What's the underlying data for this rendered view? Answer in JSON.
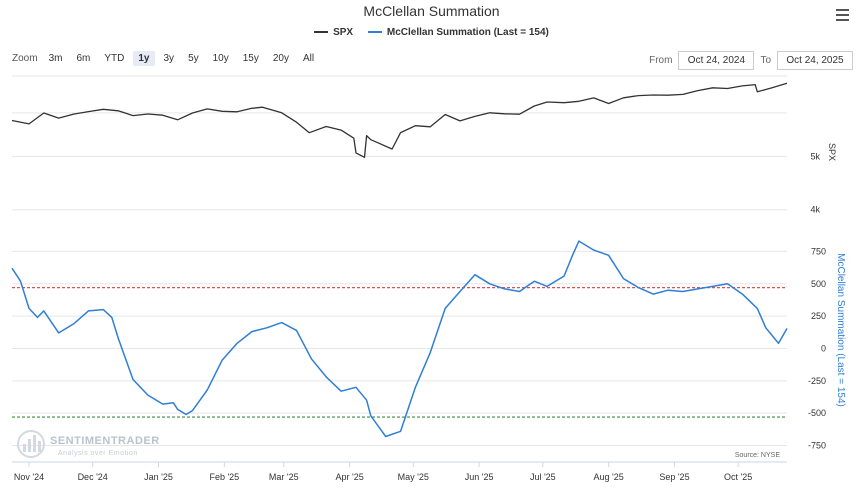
{
  "title": "McClellan Summation",
  "legend": [
    {
      "label": "SPX",
      "color": "#333333"
    },
    {
      "label": "McClellan Summation (Last = 154)",
      "color": "#2f7ed8"
    }
  ],
  "zoom": {
    "label": "Zoom",
    "buttons": [
      "3m",
      "6m",
      "YTD",
      "1y",
      "3y",
      "5y",
      "10y",
      "15y",
      "20y",
      "All"
    ],
    "active": "1y"
  },
  "range": {
    "from_label": "From",
    "from_value": "Oct 24, 2024",
    "to_label": "To",
    "to_value": "Oct 24, 2025"
  },
  "watermark": {
    "name": "SENTIMENTRADER",
    "tagline": "Analysis over Emotion"
  },
  "source": "Source: NYSE",
  "chart_data": [
    {
      "type": "line",
      "name": "SPX",
      "ylabel": "SPX",
      "yscale": "log",
      "ylim": [
        3800,
        7000
      ],
      "yticks": [
        {
          "value": 5000,
          "label": "5k"
        },
        {
          "value": 4000,
          "label": "4k"
        }
      ],
      "color": "#333333",
      "x": [
        "2024-10-24",
        "2024-11-01",
        "2024-11-08",
        "2024-11-15",
        "2024-11-22",
        "2024-11-29",
        "2024-12-06",
        "2024-12-13",
        "2024-12-20",
        "2024-12-27",
        "2025-01-03",
        "2025-01-10",
        "2025-01-17",
        "2025-01-24",
        "2025-01-31",
        "2025-02-07",
        "2025-02-14",
        "2025-02-19",
        "2025-02-28",
        "2025-03-07",
        "2025-03-13",
        "2025-03-21",
        "2025-03-28",
        "2025-04-03",
        "2025-04-04",
        "2025-04-08",
        "2025-04-09",
        "2025-04-11",
        "2025-04-21",
        "2025-04-25",
        "2025-05-02",
        "2025-05-09",
        "2025-05-16",
        "2025-05-23",
        "2025-05-30",
        "2025-06-06",
        "2025-06-13",
        "2025-06-20",
        "2025-06-27",
        "2025-07-03",
        "2025-07-11",
        "2025-07-18",
        "2025-07-25",
        "2025-08-01",
        "2025-08-08",
        "2025-08-15",
        "2025-08-22",
        "2025-08-29",
        "2025-09-05",
        "2025-09-12",
        "2025-09-19",
        "2025-09-26",
        "2025-10-03",
        "2025-10-09",
        "2025-10-10",
        "2025-10-17",
        "2025-10-24"
      ],
      "values": [
        5810,
        5728,
        5995,
        5870,
        5969,
        6032,
        6090,
        6051,
        5930,
        5970,
        5942,
        5827,
        5997,
        6101,
        6040,
        6026,
        6114,
        6144,
        6000,
        5770,
        5521,
        5667,
        5581,
        5396,
        5074,
        4982,
        5456,
        5363,
        5158,
        5525,
        5686,
        5659,
        5958,
        5802,
        5911,
        6000,
        5977,
        5967,
        6173,
        6279,
        6260,
        6297,
        6388,
        6238,
        6389,
        6450,
        6466,
        6460,
        6481,
        6584,
        6664,
        6643,
        6716,
        6753,
        6552,
        6664,
        6791
      ]
    },
    {
      "type": "line",
      "name": "McClellan Summation (Last = 154)",
      "ylabel": "McClellan Summation (Last = 154)",
      "ylim": [
        -800,
        900
      ],
      "yticks": [
        750,
        500,
        250,
        0,
        -250,
        -500,
        -750
      ],
      "color": "#2f7ed8",
      "reference_lines": [
        {
          "value": 470,
          "color": "#d9534f",
          "style": "dashed"
        },
        {
          "value": -530,
          "color": "#3a8f3a",
          "style": "dashed"
        }
      ],
      "x": [
        "2024-10-24",
        "2024-10-28",
        "2024-11-01",
        "2024-11-05",
        "2024-11-08",
        "2024-11-15",
        "2024-11-22",
        "2024-11-29",
        "2024-12-06",
        "2024-12-10",
        "2024-12-13",
        "2024-12-20",
        "2024-12-27",
        "2025-01-03",
        "2025-01-08",
        "2025-01-10",
        "2025-01-14",
        "2025-01-17",
        "2025-01-24",
        "2025-01-31",
        "2025-02-07",
        "2025-02-14",
        "2025-02-21",
        "2025-02-28",
        "2025-03-07",
        "2025-03-14",
        "2025-03-21",
        "2025-03-28",
        "2025-04-04",
        "2025-04-09",
        "2025-04-11",
        "2025-04-18",
        "2025-04-25",
        "2025-05-02",
        "2025-05-09",
        "2025-05-16",
        "2025-05-23",
        "2025-05-30",
        "2025-06-06",
        "2025-06-13",
        "2025-06-20",
        "2025-06-27",
        "2025-07-03",
        "2025-07-11",
        "2025-07-15",
        "2025-07-18",
        "2025-07-25",
        "2025-08-01",
        "2025-08-08",
        "2025-08-15",
        "2025-08-22",
        "2025-08-29",
        "2025-09-05",
        "2025-09-12",
        "2025-09-19",
        "2025-09-26",
        "2025-10-03",
        "2025-10-10",
        "2025-10-14",
        "2025-10-17",
        "2025-10-20",
        "2025-10-24"
      ],
      "values": [
        620,
        520,
        310,
        240,
        290,
        120,
        190,
        290,
        300,
        240,
        80,
        -240,
        -360,
        -430,
        -420,
        -470,
        -510,
        -480,
        -320,
        -90,
        40,
        130,
        160,
        200,
        140,
        -80,
        -220,
        -330,
        -300,
        -400,
        -520,
        -680,
        -640,
        -300,
        -30,
        310,
        440,
        570,
        500,
        460,
        440,
        520,
        480,
        560,
        720,
        830,
        760,
        720,
        540,
        470,
        420,
        450,
        440,
        460,
        480,
        500,
        420,
        310,
        160,
        100,
        40,
        154
      ]
    }
  ],
  "x_axis": {
    "ticks": [
      {
        "date": "2024-11-01",
        "label": "Nov '24"
      },
      {
        "date": "2024-12-01",
        "label": "Dec '24"
      },
      {
        "date": "2025-01-01",
        "label": "Jan '25"
      },
      {
        "date": "2025-02-01",
        "label": "Feb '25"
      },
      {
        "date": "2025-03-01",
        "label": "Mar '25"
      },
      {
        "date": "2025-04-01",
        "label": "Apr '25"
      },
      {
        "date": "2025-05-01",
        "label": "May '25"
      },
      {
        "date": "2025-06-01",
        "label": "Jun '25"
      },
      {
        "date": "2025-07-01",
        "label": "Jul '25"
      },
      {
        "date": "2025-08-01",
        "label": "Aug '25"
      },
      {
        "date": "2025-09-01",
        "label": "Sep '25"
      },
      {
        "date": "2025-10-01",
        "label": "Oct '25"
      }
    ]
  }
}
